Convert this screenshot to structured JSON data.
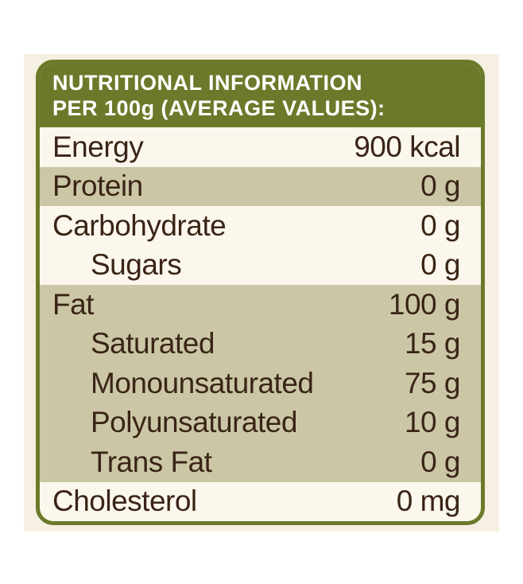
{
  "header": {
    "lines": [
      "NUTRITIONAL INFORMATION",
      "PER 100g (AVERAGE VALUES):"
    ]
  },
  "nutrients": [
    {
      "label": "Energy",
      "value": "900 kcal"
    },
    {
      "label": "Protein",
      "value": "0 g"
    },
    {
      "label": "Carbohydrate",
      "value": "0 g",
      "sub": [
        {
          "label": "Sugars",
          "value": "0 g"
        }
      ]
    },
    {
      "label": "Fat",
      "value": "100 g",
      "sub": [
        {
          "label": "Saturated",
          "value": "15 g"
        },
        {
          "label": "Monounsaturated",
          "value": "75 g"
        },
        {
          "label": "Polyunsaturated",
          "value": "10 g"
        },
        {
          "label": "Trans Fat",
          "value": "0 g"
        }
      ]
    },
    {
      "label": "Cholesterol",
      "value": "0 mg"
    }
  ]
}
